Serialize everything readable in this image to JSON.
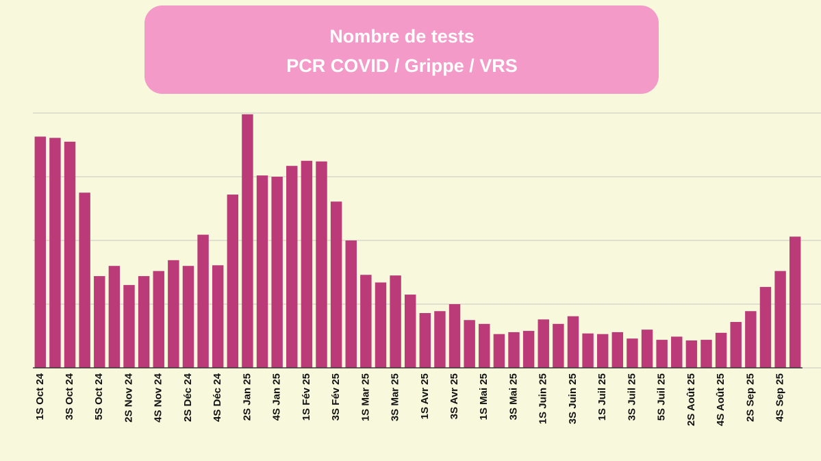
{
  "chart_data": {
    "type": "bar",
    "title_lines": [
      "Nombre de tests",
      "PCR COVID / Grippe / VRS"
    ],
    "categories": [
      "1S Oct 24",
      null,
      "3S Oct 24",
      null,
      "5S Oct 24",
      null,
      "2S Nov 24",
      null,
      "4S Nov 24",
      null,
      "2S Déc 24",
      null,
      "4S Déc 24",
      null,
      "2S Jan 25",
      null,
      "4S Jan 25",
      null,
      "1S Fév 25",
      null,
      "3S Fév 25",
      null,
      "1S Mar 25",
      null,
      "3S Mar 25",
      null,
      "1S Avr 25",
      null,
      "3S Avr 25",
      null,
      "1S Mai 25",
      null,
      "3S Mai 25",
      null,
      "1S Juin 25",
      null,
      "3S Juin 25",
      null,
      "1S Juil 25",
      null,
      "3S Juil 25",
      null,
      "5S Juil 25",
      null,
      "2S Août 25",
      null,
      "4S Août 25",
      null,
      "2S Sep 25",
      null,
      "4S Sep 25",
      null
    ],
    "values": [
      3.63,
      3.61,
      3.55,
      2.75,
      1.44,
      1.6,
      1.3,
      1.44,
      1.52,
      1.69,
      1.6,
      2.09,
      1.61,
      2.72,
      3.98,
      3.02,
      3.0,
      3.17,
      3.25,
      3.24,
      2.61,
      2.0,
      1.46,
      1.34,
      1.45,
      1.15,
      0.86,
      0.89,
      1.0,
      0.75,
      0.69,
      0.53,
      0.56,
      0.58,
      0.76,
      0.69,
      0.81,
      0.54,
      0.53,
      0.56,
      0.46,
      0.6,
      0.44,
      0.49,
      0.43,
      0.44,
      0.55,
      0.72,
      0.89,
      1.27,
      1.52,
      2.06
    ],
    "color": "#bb3a78",
    "ylim": [
      0,
      4
    ],
    "yticks": [
      0,
      1,
      2,
      3,
      4
    ],
    "ytick_labels": false,
    "grid": true
  }
}
